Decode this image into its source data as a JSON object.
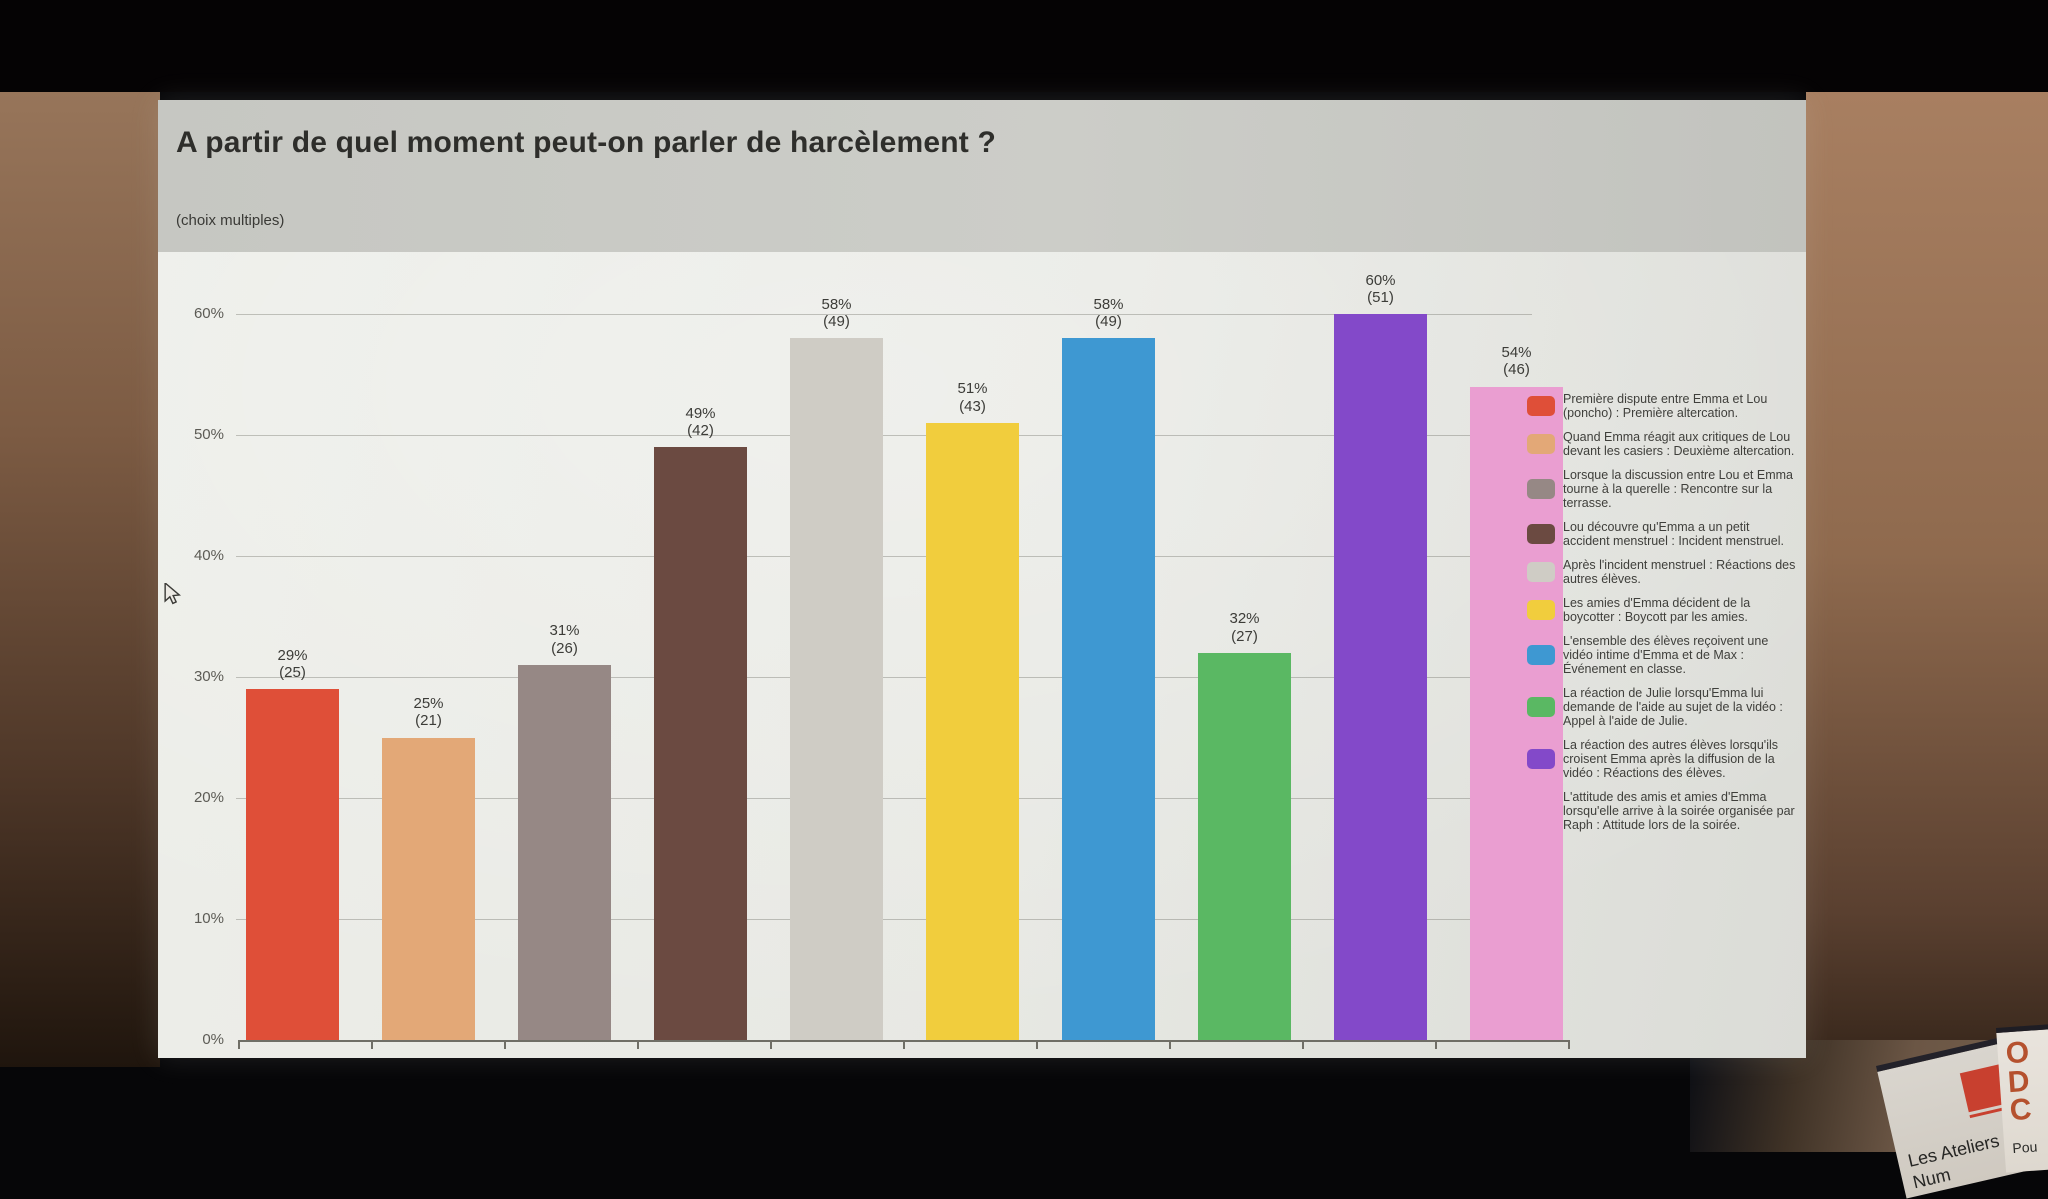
{
  "slide": {
    "title": "A partir de quel moment peut-on parler de harcèlement ?",
    "subtitle": "(choix multiples)"
  },
  "chart_data": {
    "type": "bar",
    "title": "A partir de quel moment peut-on parler de harcèlement ?",
    "subtitle": "(choix multiples)",
    "grid": true,
    "legend_position": "right",
    "ylim": [
      0,
      65
    ],
    "y_ticks": [
      "0%",
      "10%",
      "20%",
      "30%",
      "40%",
      "50%",
      "60%"
    ],
    "categories": [
      "Première altercation",
      "Deuxième altercation",
      "Rencontre sur la terrasse",
      "Incident menstruel",
      "Réactions des autres élèves",
      "Boycott par les amies",
      "Événement en classe",
      "Appel à l'aide de Julie",
      "Réactions des élèves",
      "Attitude lors de la soirée"
    ],
    "items": [
      {
        "label": "Première dispute entre Emma et Lou (poncho) : Première altercation.",
        "value": 29,
        "count": 25,
        "percent_label": "29%",
        "count_label": "(25)",
        "color": "#df4f38"
      },
      {
        "label": "Quand Emma réagit aux critiques de Lou devant les casiers : Deuxième altercation.",
        "value": 25,
        "count": 21,
        "percent_label": "25%",
        "count_label": "(21)",
        "color": "#e3a877"
      },
      {
        "label": "Lorsque la discussion entre Lou et Emma tourne à la querelle : Rencontre sur la terrasse.",
        "value": 31,
        "count": 26,
        "percent_label": "31%",
        "count_label": "(26)",
        "color": "#968885"
      },
      {
        "label": "Lou découvre qu'Emma a un petit accident menstruel : Incident menstruel.",
        "value": 49,
        "count": 42,
        "percent_label": "49%",
        "count_label": "(42)",
        "color": "#6b4a41"
      },
      {
        "label": "Après l'incident menstruel : Réactions des autres élèves.",
        "value": 58,
        "count": 49,
        "percent_label": "58%",
        "count_label": "(49)",
        "color": "#cfccc5"
      },
      {
        "label": "Les amies d'Emma décident de la boycotter : Boycott par les amies.",
        "value": 51,
        "count": 43,
        "percent_label": "51%",
        "count_label": "(43)",
        "color": "#f1cd3d"
      },
      {
        "label": "L'ensemble des élèves reçoivent une vidéo intime d'Emma et de Max : Événement en classe.",
        "value": 58,
        "count": 49,
        "percent_label": "58%",
        "count_label": "(49)",
        "color": "#3e98d2"
      },
      {
        "label": "La réaction de Julie lorsqu'Emma lui demande de l'aide au sujet de la vidéo : Appel à l'aide de Julie.",
        "value": 32,
        "count": 27,
        "percent_label": "32%",
        "count_label": "(27)",
        "color": "#5ab863"
      },
      {
        "label": "La réaction des autres élèves lorsqu'ils croisent Emma après la diffusion de la vidéo : Réactions des élèves.",
        "value": 60,
        "count": 51,
        "percent_label": "60%",
        "count_label": "(51)",
        "color": "#8349c9"
      },
      {
        "label": "L'attitude des amis et amies d'Emma lorsqu'elle arrive à la soirée organisée par Raph : Attitude lors de la soirée.",
        "value": 54,
        "count": 46,
        "percent_label": "54%",
        "count_label": "(46)",
        "color": "#ea9ed1"
      }
    ]
  },
  "banners": {
    "ateliers": {
      "line1": "Les Ateliers",
      "line2": "Num",
      "logo_color": "#c8402f"
    },
    "odc": {
      "letters": [
        "O",
        "D",
        "C"
      ],
      "caption": "Pou",
      "letter_color": "#b5512e"
    }
  },
  "icons": {
    "cursor": "mouse-pointer-icon"
  }
}
